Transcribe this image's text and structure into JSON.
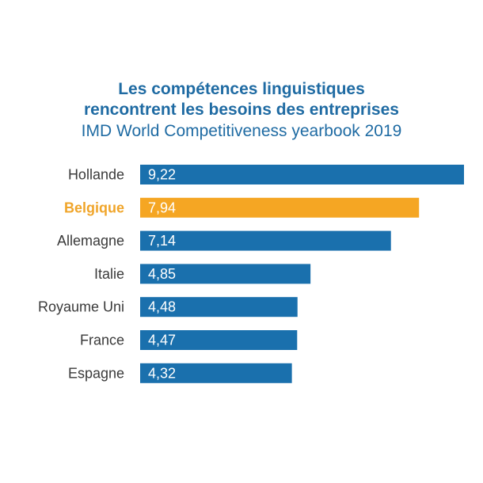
{
  "colors": {
    "primary": "#1a70ad",
    "highlight": "#f5a623",
    "title": "#1f6ba3"
  },
  "chart_data": {
    "type": "bar",
    "orientation": "horizontal",
    "title_line1": "Les compétences linguistiques",
    "title_line2": "rencontrent les besoins des entreprises",
    "subtitle": "IMD World Competitiveness yearbook 2019",
    "categories": [
      "Hollande",
      "Belgique",
      "Allemagne",
      "Italie",
      "Royaume Uni",
      "France",
      "Espagne"
    ],
    "values": [
      9.22,
      7.94,
      7.14,
      4.85,
      4.48,
      4.47,
      4.32
    ],
    "value_labels": [
      "9,22",
      "7,94",
      "7,14",
      "4,85",
      "4,48",
      "4,47",
      "4,32"
    ],
    "highlight_index": 1,
    "xlim": [
      0,
      9.22
    ],
    "grid": false,
    "legend": "none"
  }
}
